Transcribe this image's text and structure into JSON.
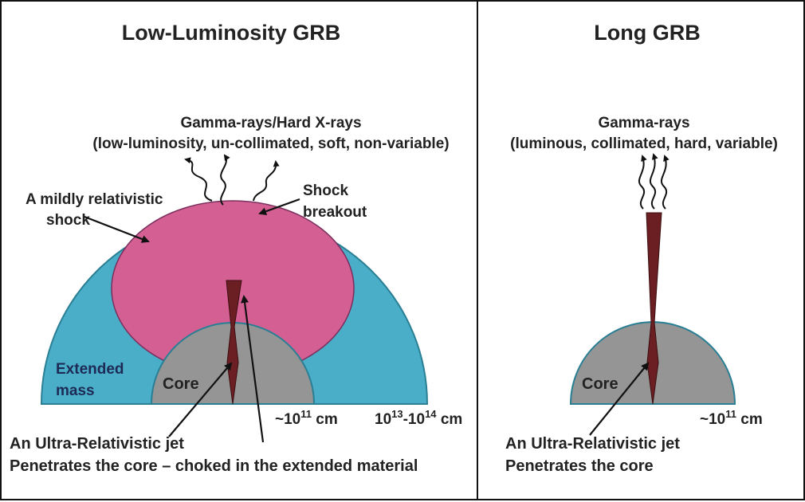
{
  "left": {
    "title": "Low-Luminosity GRB",
    "emission_line1": "Gamma-rays/Hard X-rays",
    "emission_line2": "(low-luminosity, un-collimated, soft, non-variable)",
    "shock_line1": "A mildly relativistic",
    "shock_line2": "shock",
    "breakout_line1": "Shock",
    "breakout_line2": "breakout",
    "extended_line1": "Extended",
    "extended_line2": "mass",
    "core": "Core",
    "core_size": "~10",
    "core_size_exp": "11",
    "core_size_unit": " cm",
    "outer_size_a": "10",
    "outer_size_a_exp": "13",
    "outer_size_b": "-10",
    "outer_size_b_exp": "14",
    "outer_size_unit": " cm",
    "caption_line1": "An Ultra-Relativistic jet",
    "caption_line2": "Penetrates the core – choked in the extended material"
  },
  "right": {
    "title": "Long GRB",
    "emission_line1": "Gamma-rays",
    "emission_line2": "(luminous, collimated, hard, variable)",
    "core": "Core",
    "core_size": "~10",
    "core_size_exp": "11",
    "core_size_unit": " cm",
    "caption_line1": "An Ultra-Relativistic jet",
    "caption_line2": "Penetrates the core"
  },
  "colors": {
    "extended_mass": "#4aaec8",
    "shock": "#d45f92",
    "core": "#959595",
    "jet": "#6b1f23",
    "outline": "#2a7f94"
  }
}
